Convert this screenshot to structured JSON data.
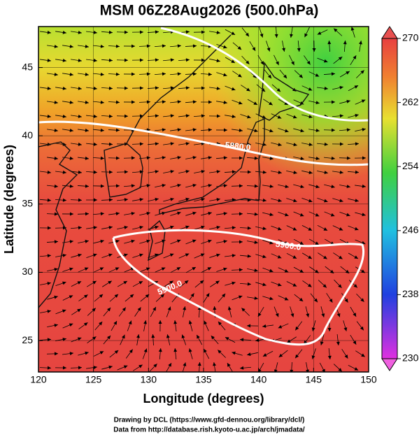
{
  "chart_data": {
    "type": "map",
    "title": "MSM 06Z28Aug2026 (500.0hPa)",
    "x_label": "Longitude (degrees)",
    "y_label": "Latitude  (degrees)",
    "xlim": [
      120,
      150
    ],
    "ylim": [
      22.7,
      48
    ],
    "xticks": [
      120,
      125,
      130,
      135,
      140,
      145,
      150
    ],
    "yticks": [
      25,
      30,
      35,
      40,
      45
    ],
    "grid": true,
    "colorbar": {
      "lim": [
        230,
        270
      ],
      "ticks": [
        230,
        238,
        246,
        254,
        262,
        270
      ]
    },
    "contours": [
      {
        "value": 5880,
        "label": "5880.0"
      },
      {
        "value": 5900,
        "label": "5900.0"
      },
      {
        "value": 5900,
        "label": "5900.0"
      }
    ],
    "credits": [
      "Drawing by DCL (https://www.gfd-dennou.org/library/dcl/)",
      "Data from http://database.rish.kyoto-u.ac.jp/arch/jmadata/"
    ]
  }
}
